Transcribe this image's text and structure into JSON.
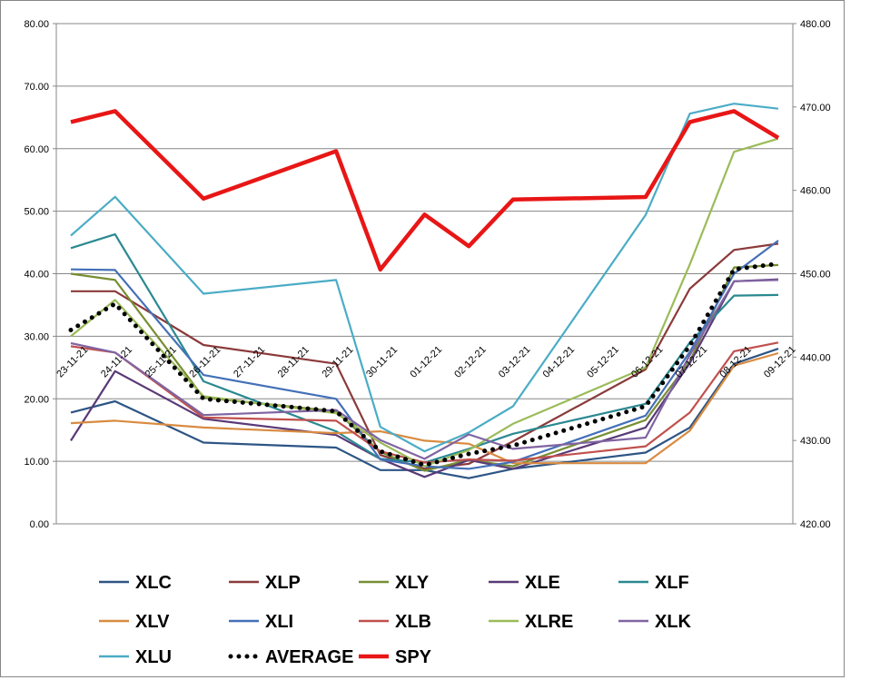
{
  "chart_data": {
    "type": "line",
    "title": "",
    "xlabel": "",
    "ylabel": "",
    "categories": [
      "23-11-21",
      "24-11-21",
      "25-11-21",
      "26-11-21",
      "27-11-21",
      "28-11-21",
      "29-11-21",
      "30-11-21",
      "01-12-21",
      "02-12-21",
      "03-12-21",
      "04-12-21",
      "05-12-21",
      "06-12-21",
      "07-12-21",
      "08-12-21",
      "09-12-21"
    ],
    "x": [
      0,
      1,
      3,
      6,
      7,
      8,
      9,
      10,
      13,
      14,
      15,
      16
    ],
    "ylim": [
      0,
      80
    ],
    "y2lim": [
      420,
      480
    ],
    "yticks": [
      "0.00",
      "10.00",
      "20.00",
      "30.00",
      "40.00",
      "50.00",
      "60.00",
      "70.00",
      "80.00"
    ],
    "y2ticks": [
      "420.00",
      "430.00",
      "440.00",
      "450.00",
      "460.00",
      "470.00",
      "480.00"
    ],
    "grid": true,
    "legend_position": "bottom",
    "series": [
      {
        "name": "XLC",
        "axis": "left",
        "style": "solid",
        "color": "#2d5585",
        "values": [
          17.8,
          19.6,
          13.0,
          12.2,
          8.6,
          8.6,
          7.3,
          8.8,
          11.4,
          15.4,
          25.6,
          28.0
        ]
      },
      {
        "name": "XLP",
        "axis": "left",
        "style": "solid",
        "color": "#8b3a3a",
        "values": [
          37.2,
          37.2,
          28.6,
          25.6,
          11.0,
          8.8,
          9.6,
          13.2,
          24.7,
          37.6,
          43.8,
          44.8
        ]
      },
      {
        "name": "XLY",
        "axis": "left",
        "style": "solid",
        "color": "#778e33",
        "values": [
          40.0,
          39.0,
          20.2,
          18.0,
          11.5,
          8.5,
          10.2,
          9.2,
          16.6,
          26.0,
          41.0,
          41.4
        ]
      },
      {
        "name": "XLE",
        "axis": "left",
        "style": "solid",
        "color": "#5a3a78",
        "values": [
          13.3,
          24.4,
          16.8,
          14.2,
          10.4,
          7.5,
          10.2,
          8.8,
          15.4,
          25.7,
          38.8,
          39.1
        ]
      },
      {
        "name": "XLF",
        "axis": "left",
        "style": "solid",
        "color": "#2a8990",
        "values": [
          44.1,
          46.3,
          22.8,
          14.8,
          10.4,
          9.8,
          12.0,
          14.4,
          19.2,
          29.0,
          36.5,
          36.6
        ]
      },
      {
        "name": "XLV",
        "axis": "left",
        "style": "solid",
        "color": "#d88b40",
        "values": [
          16.1,
          16.5,
          15.4,
          14.5,
          14.8,
          13.3,
          12.8,
          9.7,
          9.7,
          14.9,
          25.3,
          27.3
        ]
      },
      {
        "name": "XLI",
        "axis": "left",
        "style": "solid",
        "color": "#4470b8",
        "values": [
          40.7,
          40.6,
          23.8,
          20.0,
          10.3,
          9.2,
          8.8,
          9.9,
          17.3,
          27.5,
          40.0,
          45.3
        ]
      },
      {
        "name": "XLB",
        "axis": "left",
        "style": "solid",
        "color": "#c0504d",
        "values": [
          28.4,
          27.4,
          17.0,
          16.5,
          11.6,
          9.8,
          10.3,
          10.1,
          12.4,
          17.8,
          27.6,
          29.0
        ]
      },
      {
        "name": "XLRE",
        "axis": "left",
        "style": "solid",
        "color": "#9bbb59",
        "values": [
          30.0,
          35.8,
          20.4,
          17.7,
          13.0,
          9.2,
          11.8,
          16.0,
          25.0,
          41.5,
          59.5,
          61.6
        ]
      },
      {
        "name": "XLK",
        "axis": "left",
        "style": "solid",
        "color": "#8064a2",
        "values": [
          28.9,
          27.4,
          17.4,
          18.2,
          13.4,
          10.4,
          14.3,
          12.0,
          13.8,
          27.0,
          38.8,
          39.0
        ]
      },
      {
        "name": "XLU",
        "axis": "left",
        "style": "solid",
        "color": "#4bacc6",
        "values": [
          46.1,
          52.3,
          36.8,
          39.0,
          15.5,
          11.6,
          14.6,
          18.8,
          49.4,
          65.6,
          67.2,
          66.4
        ]
      },
      {
        "name": "AVERAGE",
        "axis": "left",
        "style": "dotted",
        "color": "#000000",
        "values": [
          31.0,
          35.2,
          20.0,
          18.0,
          11.6,
          9.4,
          11.2,
          12.5,
          18.8,
          28.5,
          40.7,
          41.6
        ]
      },
      {
        "name": "SPY",
        "axis": "right",
        "style": "thick",
        "color": "#e81616",
        "values": [
          468.2,
          469.5,
          459.0,
          464.7,
          450.5,
          457.1,
          453.3,
          458.9,
          459.2,
          468.2,
          469.5,
          466.3
        ]
      }
    ]
  }
}
